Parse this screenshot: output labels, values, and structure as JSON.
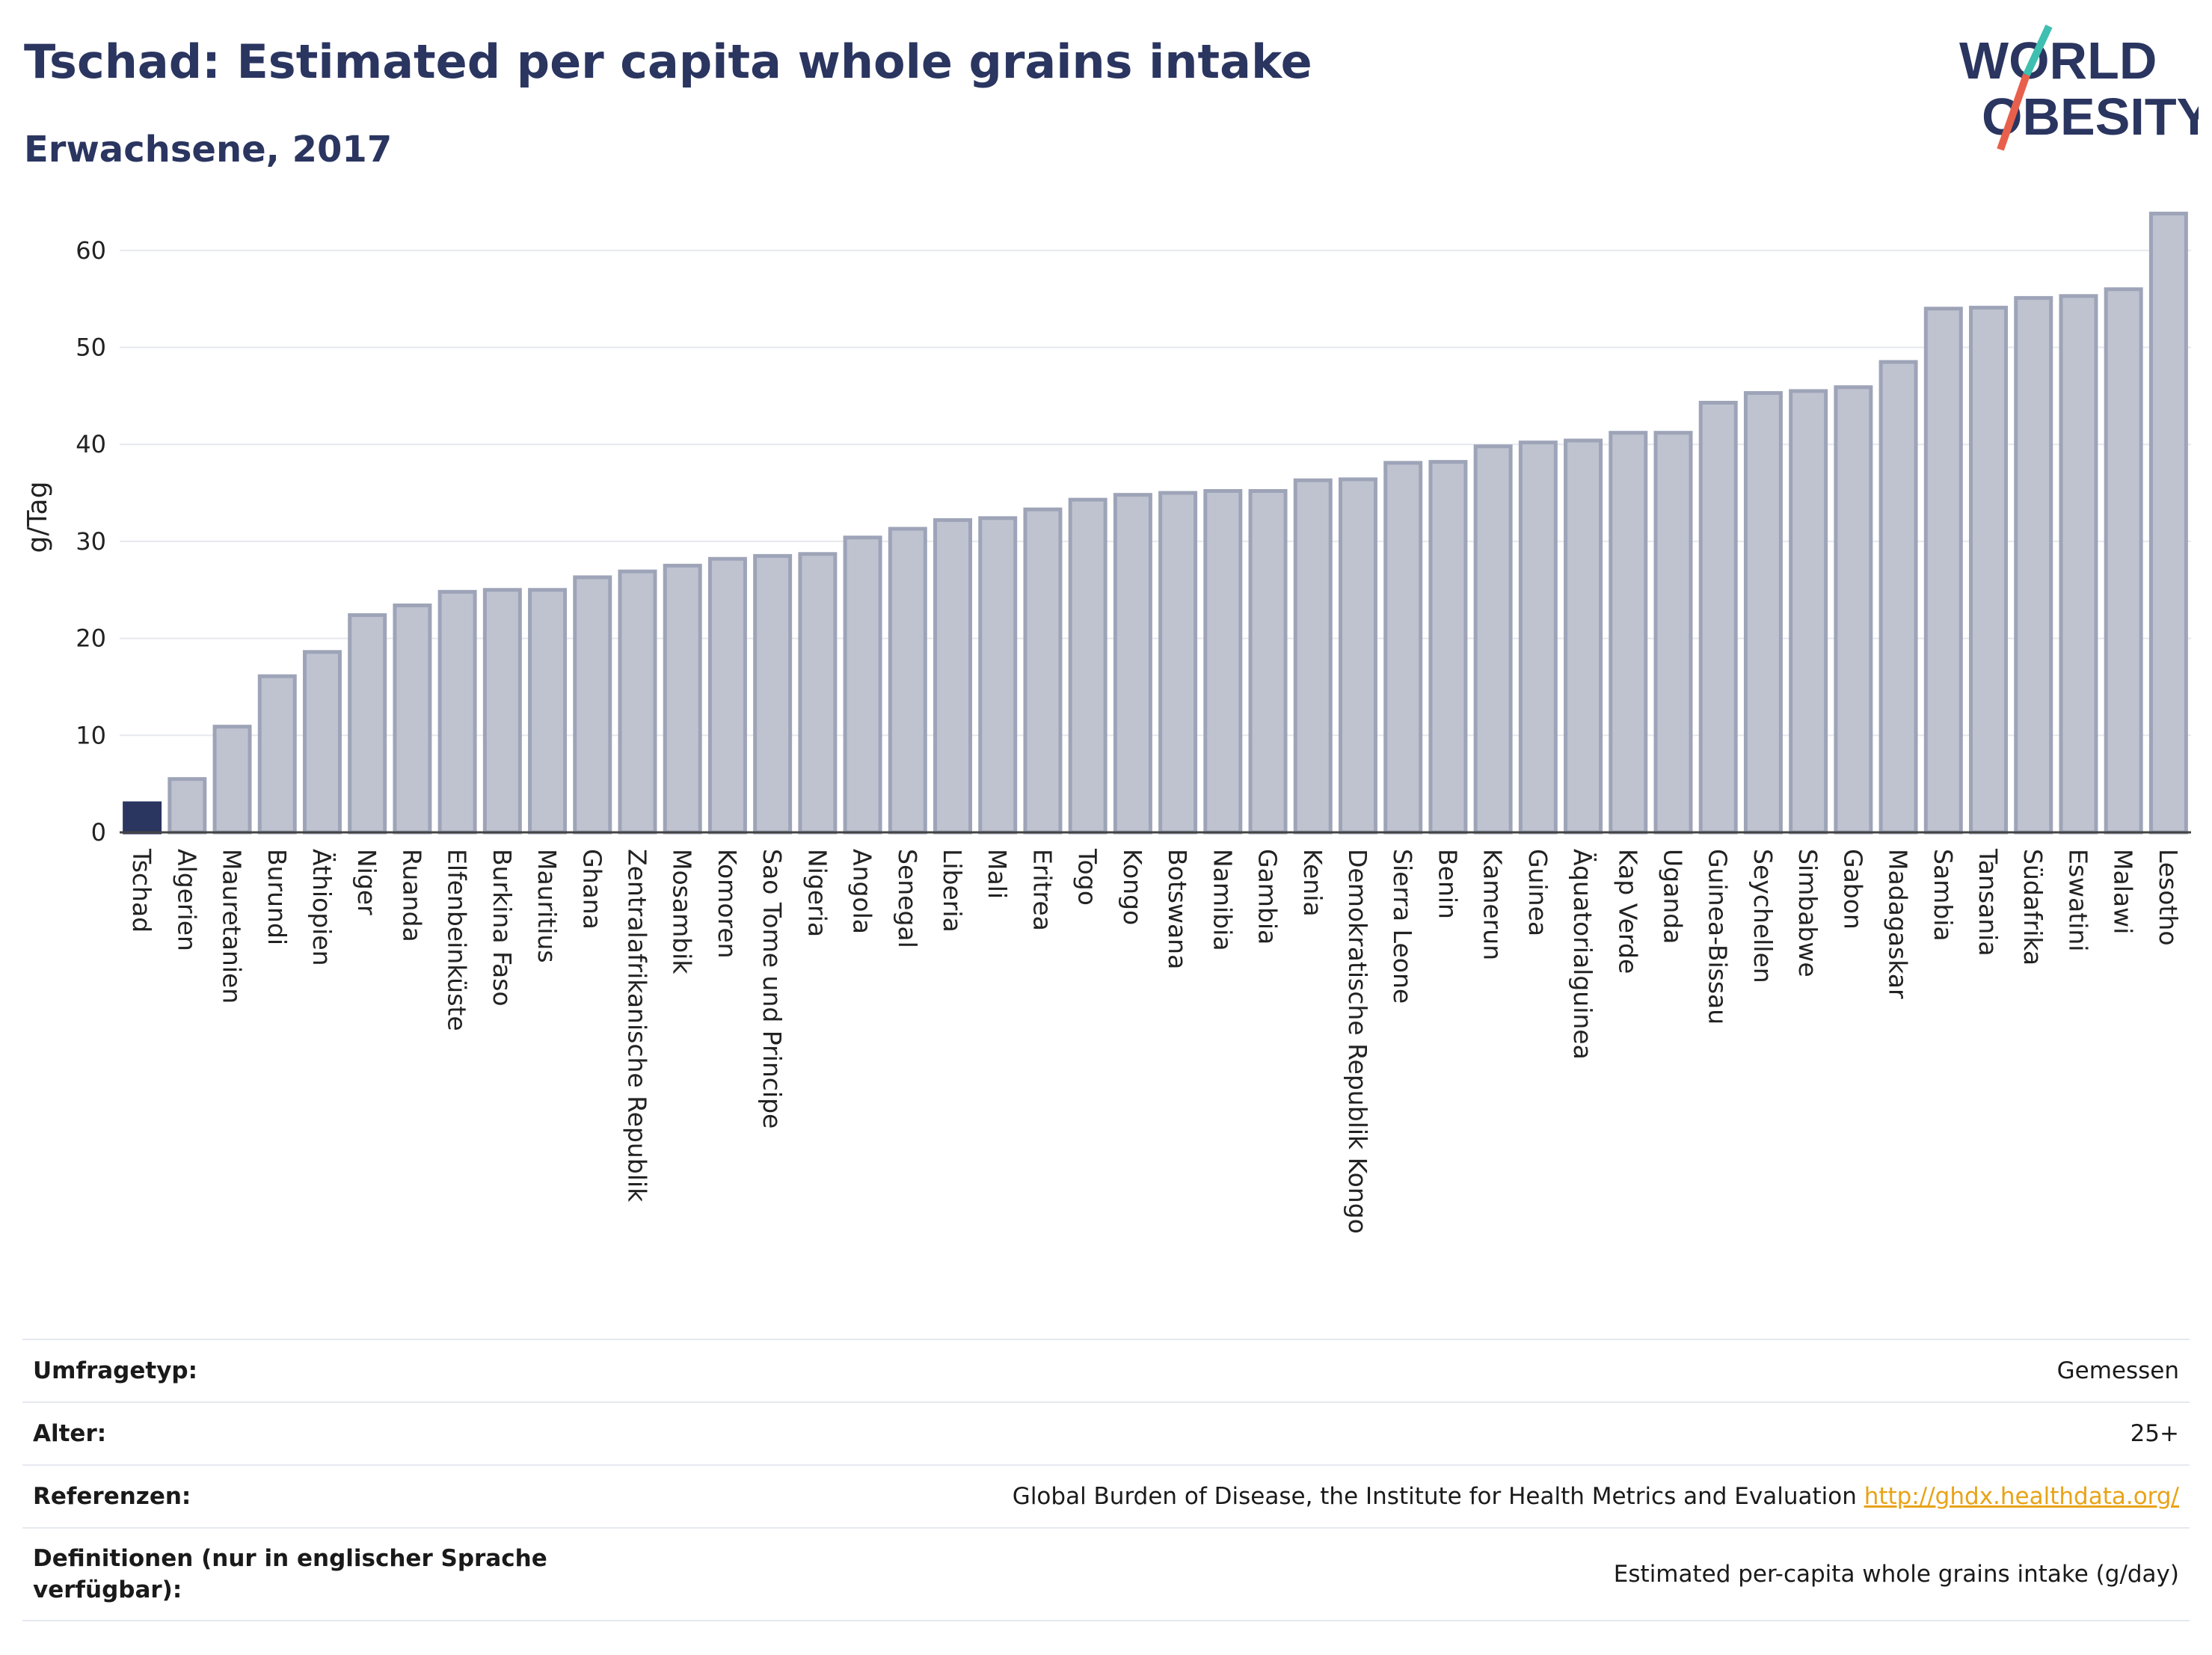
{
  "header": {
    "title": "Tschad: Estimated per capita whole grains intake",
    "subtitle": "Erwachsene, 2017"
  },
  "logo": {
    "line1": "WORLD",
    "line2": "OBESITY"
  },
  "colors": {
    "highlight": "#2a3560",
    "bar": "#bfc3d0",
    "bar_stroke": "#9ea4b8",
    "link": "#e8a317"
  },
  "chart_data": {
    "type": "bar",
    "title": "Tschad: Estimated per capita whole grains intake",
    "subtitle": "Erwachsene, 2017",
    "ylabel": "g/Tag",
    "xlabel": "",
    "ylim": [
      0,
      65
    ],
    "yticks": [
      0,
      10,
      20,
      30,
      40,
      50,
      60
    ],
    "grid": true,
    "highlight": "Tschad",
    "categories": [
      "Tschad",
      "Algerien",
      "Mauretanien",
      "Burundi",
      "Äthiopien",
      "Niger",
      "Ruanda",
      "Elfenbeinküste",
      "Burkina Faso",
      "Mauritius",
      "Ghana",
      "Zentralafrikanische Republik",
      "Mosambik",
      "Komoren",
      "Sao Tome und Principe",
      "Nigeria",
      "Angola",
      "Senegal",
      "Liberia",
      "Mali",
      "Eritrea",
      "Togo",
      "Kongo",
      "Botswana",
      "Namibia",
      "Gambia",
      "Kenia",
      "Demokratische Republik Kongo",
      "Sierra Leone",
      "Benin",
      "Kamerun",
      "Guinea",
      "Äquatorialguinea",
      "Kap Verde",
      "Uganda",
      "Guinea-Bissau",
      "Seychellen",
      "Simbabwe",
      "Gabon",
      "Madagaskar",
      "Sambia",
      "Tansania",
      "Südafrika",
      "Eswatini",
      "Malawi",
      "Lesotho"
    ],
    "values": [
      3.0,
      5.5,
      10.9,
      16.1,
      18.6,
      22.4,
      23.4,
      24.8,
      25.0,
      25.0,
      26.3,
      26.9,
      27.5,
      28.2,
      28.5,
      28.7,
      30.4,
      31.3,
      32.2,
      32.4,
      33.3,
      34.3,
      34.8,
      35.0,
      35.2,
      35.2,
      36.3,
      36.4,
      38.1,
      38.2,
      39.8,
      40.2,
      40.4,
      41.2,
      41.2,
      44.3,
      45.3,
      45.5,
      45.9,
      48.5,
      54.0,
      54.1,
      55.1,
      55.3,
      56.0,
      63.8
    ]
  },
  "meta": [
    {
      "key": "Umfragetyp:",
      "value": "Gemessen"
    },
    {
      "key": "Alter:",
      "value": "25+"
    },
    {
      "key": "Referenzen:",
      "value": "Global Burden of Disease, the Institute for Health Metrics and Evaluation",
      "link": "http://ghdx.healthdata.org/"
    },
    {
      "key": "Definitionen (nur in englischer Sprache verfügbar):",
      "value": "Estimated per-capita whole grains intake (g/day)"
    }
  ]
}
